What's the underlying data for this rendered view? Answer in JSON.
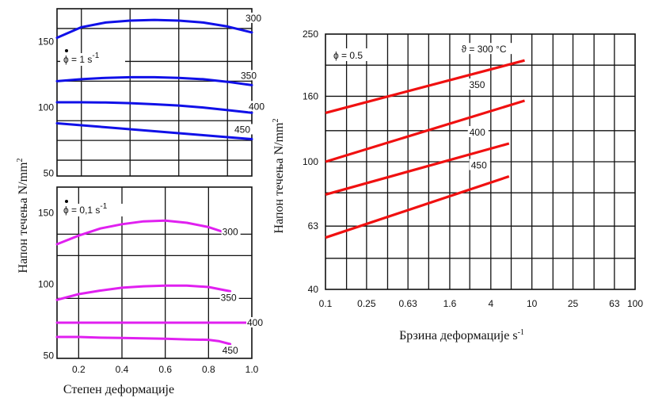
{
  "chart_data": [
    {
      "type": "line",
      "panel": "top-left",
      "annotation": "ϕ = 1 s",
      "annotation_sup": "-1",
      "xlim": [
        0.1,
        0.9
      ],
      "ylim": [
        48,
        175
      ],
      "x_ticks": [],
      "y_ticks": [
        {
          "v": 150,
          "label": "150"
        },
        {
          "v": 100,
          "label": "100"
        },
        {
          "v": 50,
          "label": "50"
        }
      ],
      "series": [
        {
          "name": "300",
          "x": [
            0.1,
            0.2,
            0.3,
            0.4,
            0.5,
            0.6,
            0.7,
            0.8,
            0.9
          ],
          "y": [
            153,
            161,
            164.5,
            166,
            166.5,
            166,
            164.5,
            161.5,
            157
          ]
        },
        {
          "name": "350",
          "x": [
            0.1,
            0.2,
            0.3,
            0.4,
            0.5,
            0.6,
            0.7,
            0.8,
            0.9
          ],
          "y": [
            120,
            121.5,
            122.5,
            123,
            123,
            122.5,
            121.5,
            119.5,
            117
          ]
        },
        {
          "name": "400",
          "x": [
            0.1,
            0.2,
            0.3,
            0.4,
            0.5,
            0.6,
            0.7,
            0.8,
            0.9
          ],
          "y": [
            104,
            104,
            103.8,
            103.3,
            102.5,
            101.5,
            100,
            98,
            96
          ]
        },
        {
          "name": "450",
          "x": [
            0.1,
            0.2,
            0.3,
            0.4,
            0.5,
            0.6,
            0.7,
            0.8,
            0.9
          ],
          "y": [
            88,
            86.5,
            85,
            83.5,
            82,
            80.5,
            79,
            77.5,
            76
          ]
        }
      ],
      "series_labels": [
        "300",
        "350",
        "400",
        "450"
      ],
      "color": "#1010e8"
    },
    {
      "type": "line",
      "panel": "bottom-left",
      "annotation": "ϕ = 0,1 s",
      "annotation_sup": "-1",
      "xlim": [
        0.1,
        1.0
      ],
      "ylim": [
        48,
        168
      ],
      "x_ticks": [
        {
          "v": 0.2,
          "label": "0.2"
        },
        {
          "v": 0.4,
          "label": "0.4"
        },
        {
          "v": 0.6,
          "label": "0.6"
        },
        {
          "v": 0.8,
          "label": "0.8"
        },
        {
          "v": 1.0,
          "label": "1.0"
        }
      ],
      "y_ticks": [
        {
          "v": 150,
          "label": "150"
        },
        {
          "v": 100,
          "label": "100"
        },
        {
          "v": 50,
          "label": "50"
        }
      ],
      "xlabel": "Степен деформације",
      "series": [
        {
          "name": "300",
          "x": [
            0.1,
            0.2,
            0.3,
            0.4,
            0.5,
            0.6,
            0.7,
            0.8,
            0.9
          ],
          "y": [
            128,
            134,
            139,
            142,
            144,
            144.5,
            143,
            140,
            135
          ]
        },
        {
          "name": "350",
          "x": [
            0.1,
            0.2,
            0.3,
            0.4,
            0.5,
            0.6,
            0.7,
            0.8,
            0.9
          ],
          "y": [
            89,
            93,
            95.5,
            97.5,
            98.5,
            99,
            99,
            98,
            95
          ]
        },
        {
          "name": "400",
          "x": [
            0.1,
            0.2,
            0.3,
            0.4,
            0.5,
            0.6,
            0.7,
            0.8,
            0.9,
            1.0
          ],
          "y": [
            73,
            73,
            73,
            73,
            73,
            73,
            73,
            73,
            73,
            73
          ]
        },
        {
          "name": "450",
          "x": [
            0.1,
            0.2,
            0.3,
            0.4,
            0.5,
            0.6,
            0.7,
            0.8,
            0.85,
            0.9
          ],
          "y": [
            63,
            63,
            62.5,
            62.3,
            62,
            61.7,
            61.3,
            61,
            60,
            58
          ]
        }
      ],
      "series_labels": [
        "300",
        "350",
        "400",
        "450"
      ],
      "color": "#e020f0"
    },
    {
      "type": "line",
      "panel": "right",
      "annotation": "ϕ = 0.5",
      "x_scale": "log",
      "y_scale": "log",
      "xlim": [
        0.1,
        100
      ],
      "ylim": [
        40,
        250
      ],
      "x_ticks": [
        {
          "v": 0.1,
          "label": "0.1"
        },
        {
          "v": 0.25,
          "label": "0.25"
        },
        {
          "v": 0.63,
          "label": "0.63"
        },
        {
          "v": 1.6,
          "label": "1.6"
        },
        {
          "v": 4,
          "label": "4"
        },
        {
          "v": 10,
          "label": "10"
        },
        {
          "v": 25,
          "label": "25"
        },
        {
          "v": 63,
          "label": "63"
        },
        {
          "v": 100,
          "label": "100"
        }
      ],
      "y_ticks": [
        {
          "v": 250,
          "label": "250"
        },
        {
          "v": 160,
          "label": "160"
        },
        {
          "v": 100,
          "label": "100"
        },
        {
          "v": 63,
          "label": "63"
        },
        {
          "v": 40,
          "label": "40"
        }
      ],
      "ylabel": "Напон течења N/mm",
      "ylabel_sup": "2",
      "xlabel": "Брзина деформације s",
      "xlabel_sup": "-1",
      "series": [
        {
          "name": "ϑ = 300 °C",
          "x": [
            0.1,
            8.5
          ],
          "y": [
            142,
            207
          ]
        },
        {
          "name": "350",
          "x": [
            0.1,
            8.5
          ],
          "y": [
            100,
            155
          ]
        },
        {
          "name": "400",
          "x": [
            0.1,
            6.0
          ],
          "y": [
            79,
            114
          ]
        },
        {
          "name": "450",
          "x": [
            0.1,
            6.0
          ],
          "y": [
            58,
            90
          ]
        }
      ],
      "series_labels": [
        "ϑ = 300 °C",
        "350",
        "400",
        "450"
      ],
      "color": "#f01010"
    }
  ]
}
